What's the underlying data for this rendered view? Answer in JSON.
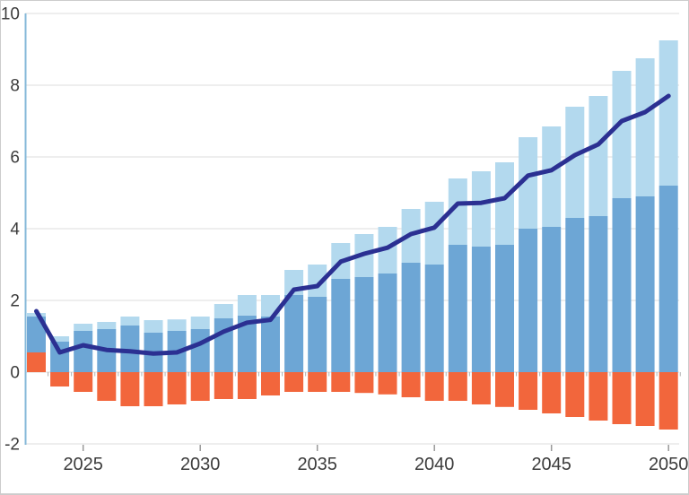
{
  "chart_data": {
    "type": "bar",
    "stacked": true,
    "title": "",
    "xlabel": "",
    "ylabel": "",
    "grid": true,
    "legend": "none",
    "ylim": [
      -2,
      10
    ],
    "yticks": [
      10,
      8,
      6,
      4,
      2,
      0,
      -2
    ],
    "xticks_labeled": [
      2025,
      2030,
      2035,
      2040,
      2045,
      2050
    ],
    "categories": [
      2023,
      2024,
      2025,
      2026,
      2027,
      2028,
      2029,
      2030,
      2031,
      2032,
      2033,
      2034,
      2035,
      2036,
      2037,
      2038,
      2039,
      2040,
      2041,
      2042,
      2043,
      2044,
      2045,
      2046,
      2047,
      2048,
      2049,
      2050
    ],
    "series": [
      {
        "name": "orange-segment",
        "color": "#f2663c",
        "values": [
          0.55,
          -0.4,
          -0.55,
          -0.8,
          -0.95,
          -0.95,
          -0.9,
          -0.8,
          -0.75,
          -0.75,
          -0.65,
          -0.55,
          -0.55,
          -0.55,
          -0.58,
          -0.62,
          -0.7,
          -0.8,
          -0.8,
          -0.9,
          -0.97,
          -1.05,
          -1.15,
          -1.25,
          -1.35,
          -1.45,
          -1.5,
          -1.6
        ]
      },
      {
        "name": "medium-blue-segment",
        "color": "#6da6d5",
        "values": [
          1.0,
          0.85,
          1.15,
          1.2,
          1.3,
          1.1,
          1.15,
          1.2,
          1.5,
          1.58,
          1.55,
          2.15,
          2.1,
          2.6,
          2.65,
          2.75,
          3.05,
          3.0,
          3.55,
          3.5,
          3.55,
          4.0,
          4.05,
          4.3,
          4.35,
          4.85,
          4.9,
          5.2
        ]
      },
      {
        "name": "light-blue-segment",
        "color": "#b3d9ee",
        "values": [
          0.1,
          0.15,
          0.2,
          0.2,
          0.25,
          0.35,
          0.32,
          0.35,
          0.4,
          0.57,
          0.6,
          0.7,
          0.9,
          1.0,
          1.2,
          1.3,
          1.5,
          1.75,
          1.85,
          2.1,
          2.3,
          2.55,
          2.8,
          3.1,
          3.35,
          3.55,
          3.85,
          4.05
        ]
      }
    ],
    "line_series": {
      "name": "navy-trend-line",
      "color": "#2b3092",
      "values": [
        1.7,
        0.55,
        0.75,
        0.62,
        0.58,
        0.52,
        0.55,
        0.8,
        1.13,
        1.38,
        1.46,
        2.3,
        2.4,
        3.08,
        3.3,
        3.47,
        3.85,
        4.03,
        4.7,
        4.72,
        4.85,
        5.48,
        5.63,
        6.05,
        6.35,
        7.0,
        7.25,
        7.7
      ]
    },
    "axis_style": {
      "y_axis_line_color": "#85b8d8",
      "grid_color": "#dcdcdc",
      "minor_tick_color": "#b0b0b0",
      "major_tick_color": "#999999",
      "label_color": "#3c3c3c"
    }
  }
}
